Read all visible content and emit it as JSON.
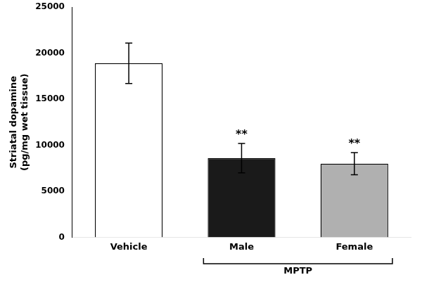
{
  "chart_data": {
    "type": "bar",
    "categories": [
      "Vehicle",
      "Male",
      "Female"
    ],
    "values": [
      18900,
      8600,
      8000
    ],
    "errors": [
      2200,
      1600,
      1200
    ],
    "colors": [
      "#FFFFFF",
      "#1a1a1a",
      "#B0B0B0"
    ],
    "significance": [
      null,
      "**",
      "**"
    ],
    "bracket": {
      "label": "MPTP",
      "from": "Male",
      "to": "Female"
    },
    "ylabel": [
      "Striatal dopamine",
      "(pg/mg wet tissue)"
    ],
    "ylim": [
      0,
      25000
    ],
    "yticks": [
      0,
      5000,
      10000,
      15000,
      20000,
      25000
    ],
    "grid": false
  }
}
